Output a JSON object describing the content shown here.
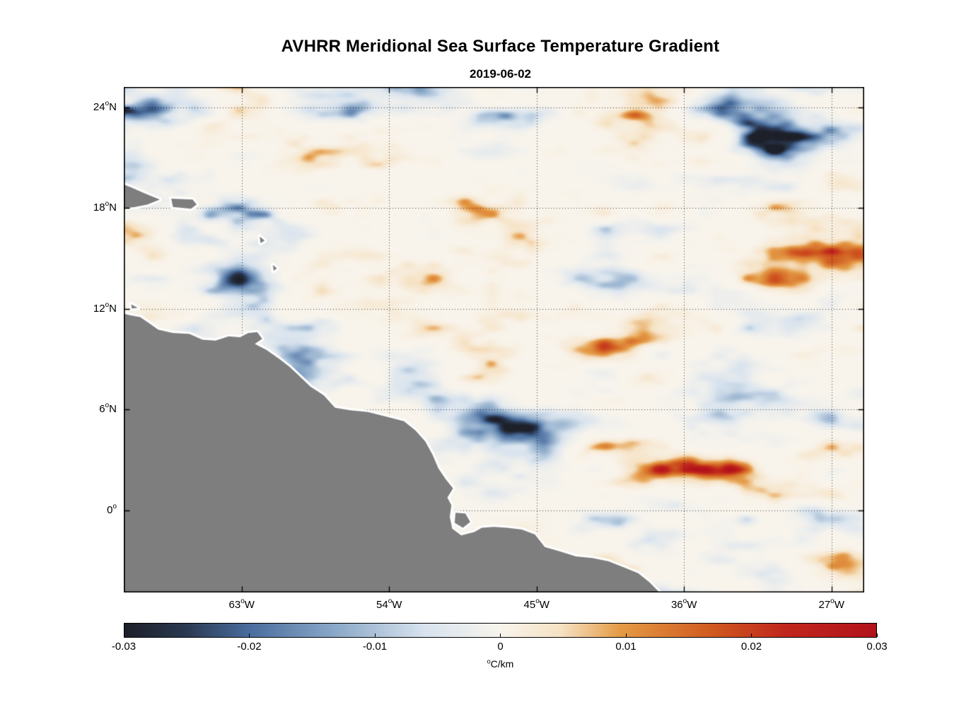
{
  "header": {
    "title": "AVHRR Meridional Sea Surface Temperature Gradient",
    "date": "2019-06-02"
  },
  "chart_data": {
    "type": "heatmap",
    "title": "AVHRR Meridional Sea Surface Temperature Gradient",
    "subtitle": "2019-06-02",
    "variable": "Meridional sea surface temperature gradient",
    "units": "°C/km",
    "grid": "dotted",
    "x_axis": {
      "range": [
        -70.2,
        -25.0
      ],
      "tick_lons": [
        -63,
        -54,
        -45,
        -36,
        -27
      ],
      "tick_labels": [
        "63°W",
        "54°W",
        "45°W",
        "36°W",
        "27°W"
      ]
    },
    "y_axis": {
      "range": [
        -4.9,
        25.2
      ],
      "tick_lats": [
        24,
        18,
        12,
        6,
        0
      ],
      "tick_labels": [
        "24°N",
        "18°N",
        "12°N",
        "6°N",
        "0°"
      ]
    },
    "colorbar": {
      "range": [
        -0.03,
        0.03
      ],
      "ticks": [
        -0.03,
        -0.02,
        -0.01,
        0,
        0.01,
        0.02,
        0.03
      ],
      "tick_labels": [
        "-0.03",
        "-0.02",
        "-0.01",
        "0",
        "0.01",
        "0.02",
        "0.03"
      ],
      "label": "°C/km",
      "orientation": "horizontal"
    },
    "colormap_stops": [
      [
        0.0,
        "#1d2029"
      ],
      [
        0.08,
        "#2a3850"
      ],
      [
        0.167,
        "#4a6d9e"
      ],
      [
        0.28,
        "#8aa8c8"
      ],
      [
        0.4,
        "#d8e3ee"
      ],
      [
        0.5,
        "#f8f4ec"
      ],
      [
        0.58,
        "#f6e2c4"
      ],
      [
        0.66,
        "#e49a45"
      ],
      [
        0.78,
        "#d05a20"
      ],
      [
        0.88,
        "#c0261c"
      ],
      [
        1.0,
        "#b2121b"
      ]
    ],
    "field": {
      "seed": 20190602,
      "value_range": [
        -0.03,
        0.03
      ],
      "description": "Smooth mesoscale field of alternating weak positive (orange) and negative (blue) meridional SST gradient patches over the tropical Atlantic; mostly near zero (pale) with horizontally elongated stronger anomalies up to ±0.03 °C/km."
    },
    "land": {
      "fill": "#7e7e7e",
      "coast_halo": "#ffffff",
      "polygons": [
        [
          [
            -70.35,
            11.75
          ],
          [
            -69.8,
            11.6
          ],
          [
            -69.2,
            11.5
          ],
          [
            -68.6,
            11.1
          ],
          [
            -68.1,
            10.75
          ],
          [
            -67.2,
            10.55
          ],
          [
            -66.2,
            10.5
          ],
          [
            -65.4,
            10.15
          ],
          [
            -64.6,
            10.1
          ],
          [
            -63.8,
            10.35
          ],
          [
            -63.1,
            10.3
          ],
          [
            -62.6,
            10.55
          ],
          [
            -62.05,
            10.6
          ],
          [
            -61.75,
            10.2
          ],
          [
            -62.2,
            9.9
          ],
          [
            -61.5,
            9.55
          ],
          [
            -60.7,
            9.0
          ],
          [
            -60.1,
            8.55
          ],
          [
            -59.6,
            8.1
          ],
          [
            -58.8,
            7.35
          ],
          [
            -58.0,
            6.85
          ],
          [
            -57.3,
            6.1
          ],
          [
            -56.4,
            5.95
          ],
          [
            -55.3,
            5.85
          ],
          [
            -54.1,
            5.55
          ],
          [
            -53.1,
            5.3
          ],
          [
            -52.4,
            4.75
          ],
          [
            -51.8,
            4.1
          ],
          [
            -51.35,
            3.3
          ],
          [
            -51.0,
            2.5
          ],
          [
            -50.55,
            1.85
          ],
          [
            -50.1,
            1.3
          ],
          [
            -50.45,
            0.75
          ],
          [
            -50.2,
            0.3
          ],
          [
            -50.3,
            -0.4
          ],
          [
            -50.15,
            -1.1
          ],
          [
            -49.6,
            -1.5
          ],
          [
            -48.8,
            -1.3
          ],
          [
            -48.35,
            -1.05
          ],
          [
            -47.6,
            -1.0
          ],
          [
            -46.8,
            -1.05
          ],
          [
            -45.9,
            -1.15
          ],
          [
            -45.1,
            -1.45
          ],
          [
            -44.5,
            -2.2
          ],
          [
            -43.6,
            -2.45
          ],
          [
            -42.6,
            -2.75
          ],
          [
            -41.6,
            -2.85
          ],
          [
            -40.6,
            -3.05
          ],
          [
            -39.7,
            -3.4
          ],
          [
            -38.8,
            -3.75
          ],
          [
            -38.1,
            -4.3
          ],
          [
            -37.4,
            -5.0
          ],
          [
            -37.2,
            -5.5
          ],
          [
            -70.45,
            -5.5
          ]
        ],
        [
          [
            -49.95,
            -0.15
          ],
          [
            -49.35,
            -0.2
          ],
          [
            -49.05,
            -0.7
          ],
          [
            -49.5,
            -1.05
          ],
          [
            -50.0,
            -0.75
          ]
        ],
        [
          [
            -70.35,
            19.45
          ],
          [
            -69.7,
            19.2
          ],
          [
            -69.0,
            18.9
          ],
          [
            -68.0,
            18.5
          ],
          [
            -68.75,
            18.2
          ],
          [
            -69.5,
            18.05
          ],
          [
            -70.35,
            17.95
          ]
        ],
        [
          [
            -67.3,
            18.55
          ],
          [
            -66.0,
            18.5
          ],
          [
            -65.75,
            18.2
          ],
          [
            -66.1,
            17.95
          ],
          [
            -67.2,
            18.05
          ]
        ],
        [
          [
            -69.75,
            12.25
          ],
          [
            -69.35,
            12.05
          ],
          [
            -69.7,
            12.0
          ]
        ],
        [
          [
            -61.9,
            16.3
          ],
          [
            -61.6,
            16.05
          ],
          [
            -61.85,
            15.9
          ]
        ],
        [
          [
            -61.1,
            14.6
          ],
          [
            -60.85,
            14.4
          ],
          [
            -61.05,
            14.25
          ]
        ]
      ]
    }
  }
}
